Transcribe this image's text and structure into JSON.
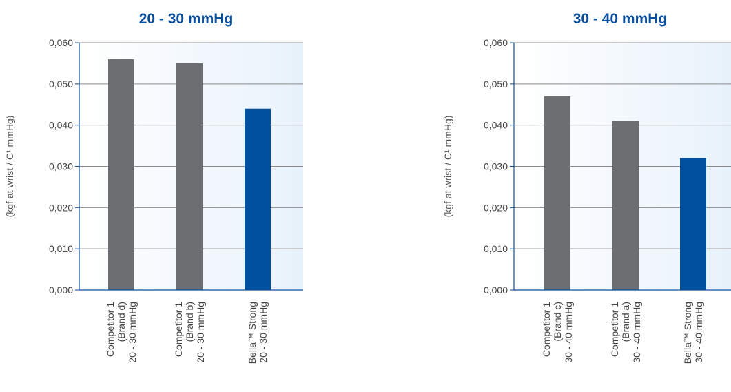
{
  "colors": {
    "title": "#0a4f9e",
    "competitor_bar": "#6d6e71",
    "brand_bar": "#0050a0",
    "axis": "#0a4f9e",
    "grid": "#8a8a8a",
    "panel_start": "#ffffff",
    "panel_end": "#e8f2fb"
  },
  "chart_data": [
    {
      "type": "bar",
      "title": "20 - 30 mmHg",
      "ylabel": "(kgf at wrist / C¹ mmHg)",
      "ylim": [
        0,
        0.06
      ],
      "yticks": [
        "0,000",
        "0,010",
        "0,020",
        "0,030",
        "0,040",
        "0,050",
        "0,060"
      ],
      "categories": [
        [
          "Competitor 1",
          "(Brand d)",
          "20 - 30 mmHg"
        ],
        [
          "Competitor 1",
          "(Brand b)",
          "20 - 30 mmHg"
        ],
        [
          "Bella™ Strong",
          "20 - 30 mmHg"
        ]
      ],
      "values": [
        0.056,
        0.055,
        0.044
      ],
      "highlight": [
        false,
        false,
        true
      ],
      "grid": true
    },
    {
      "type": "bar",
      "title": "30 - 40 mmHg",
      "ylabel": "(kgf at wrist / C¹ mmHg)",
      "ylim": [
        0,
        0.06
      ],
      "yticks": [
        "0,000",
        "0,010",
        "0,020",
        "0,030",
        "0,040",
        "0,050",
        "0,060"
      ],
      "categories": [
        [
          "Competitor 1",
          "(Brand c)",
          "30 - 40 mmHg"
        ],
        [
          "Competitor 1",
          "(Brand a)",
          "30 - 40 mmHg"
        ],
        [
          "Bella™ Strong",
          "30 - 40 mmHg"
        ]
      ],
      "values": [
        0.047,
        0.041,
        0.032
      ],
      "highlight": [
        false,
        false,
        true
      ],
      "grid": true
    }
  ]
}
